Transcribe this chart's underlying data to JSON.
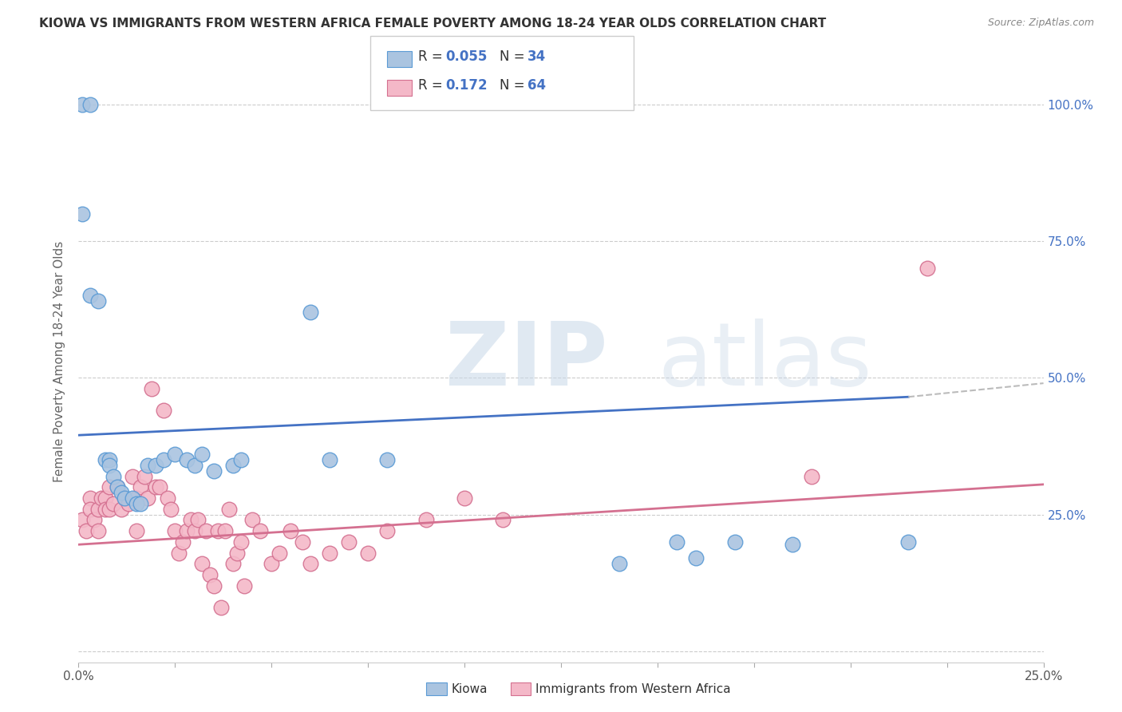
{
  "title": "KIOWA VS IMMIGRANTS FROM WESTERN AFRICA FEMALE POVERTY AMONG 18-24 YEAR OLDS CORRELATION CHART",
  "source": "Source: ZipAtlas.com",
  "ylabel": "Female Poverty Among 18-24 Year Olds",
  "xlim": [
    0.0,
    0.25
  ],
  "ylim": [
    -0.02,
    1.08
  ],
  "yticks": [
    0.0,
    0.25,
    0.5,
    0.75,
    1.0
  ],
  "ytick_labels": [
    "",
    "25.0%",
    "50.0%",
    "75.0%",
    "100.0%"
  ],
  "watermark": "ZIPatlas",
  "legend_r_kiowa": "0.055",
  "legend_n_kiowa": "34",
  "legend_r_immigrants": "0.172",
  "legend_n_immigrants": "64",
  "kiowa_color": "#aac4e0",
  "kiowa_edge_color": "#5b9bd5",
  "immigrants_color": "#f4b8c8",
  "immigrants_edge_color": "#d47090",
  "trend_kiowa_color": "#4472c4",
  "trend_immigrants_color": "#d47090",
  "trend_dashed_color": "#bbbbbb",
  "kiowa_x": [
    0.001,
    0.003,
    0.001,
    0.003,
    0.005,
    0.007,
    0.008,
    0.008,
    0.009,
    0.01,
    0.011,
    0.012,
    0.014,
    0.015,
    0.016,
    0.018,
    0.02,
    0.022,
    0.025,
    0.028,
    0.03,
    0.032,
    0.035,
    0.04,
    0.042,
    0.06,
    0.065,
    0.08,
    0.14,
    0.155,
    0.16,
    0.17,
    0.185,
    0.215
  ],
  "kiowa_y": [
    1.0,
    1.0,
    0.8,
    0.65,
    0.64,
    0.35,
    0.35,
    0.34,
    0.32,
    0.3,
    0.29,
    0.28,
    0.28,
    0.27,
    0.27,
    0.34,
    0.34,
    0.35,
    0.36,
    0.35,
    0.34,
    0.36,
    0.33,
    0.34,
    0.35,
    0.62,
    0.35,
    0.35,
    0.16,
    0.2,
    0.17,
    0.2,
    0.195,
    0.2
  ],
  "immigrants_x": [
    0.001,
    0.002,
    0.003,
    0.003,
    0.004,
    0.005,
    0.005,
    0.006,
    0.007,
    0.007,
    0.008,
    0.008,
    0.009,
    0.01,
    0.011,
    0.012,
    0.013,
    0.014,
    0.015,
    0.015,
    0.016,
    0.017,
    0.018,
    0.019,
    0.02,
    0.021,
    0.022,
    0.023,
    0.024,
    0.025,
    0.026,
    0.027,
    0.028,
    0.029,
    0.03,
    0.031,
    0.032,
    0.033,
    0.034,
    0.035,
    0.036,
    0.037,
    0.038,
    0.039,
    0.04,
    0.041,
    0.042,
    0.043,
    0.045,
    0.047,
    0.05,
    0.052,
    0.055,
    0.058,
    0.06,
    0.065,
    0.07,
    0.075,
    0.08,
    0.09,
    0.1,
    0.11,
    0.19,
    0.22
  ],
  "immigrants_y": [
    0.24,
    0.22,
    0.28,
    0.26,
    0.24,
    0.26,
    0.22,
    0.28,
    0.28,
    0.26,
    0.3,
    0.26,
    0.27,
    0.3,
    0.26,
    0.28,
    0.27,
    0.32,
    0.28,
    0.22,
    0.3,
    0.32,
    0.28,
    0.48,
    0.3,
    0.3,
    0.44,
    0.28,
    0.26,
    0.22,
    0.18,
    0.2,
    0.22,
    0.24,
    0.22,
    0.24,
    0.16,
    0.22,
    0.14,
    0.12,
    0.22,
    0.08,
    0.22,
    0.26,
    0.16,
    0.18,
    0.2,
    0.12,
    0.24,
    0.22,
    0.16,
    0.18,
    0.22,
    0.2,
    0.16,
    0.18,
    0.2,
    0.18,
    0.22,
    0.24,
    0.28,
    0.24,
    0.32,
    0.7
  ],
  "trend_kiowa_x_start": 0.0,
  "trend_kiowa_x_end": 0.25,
  "trend_kiowa_solid_end": 0.215,
  "trend_immigrants_x_start": 0.0,
  "trend_immigrants_x_end": 0.25
}
